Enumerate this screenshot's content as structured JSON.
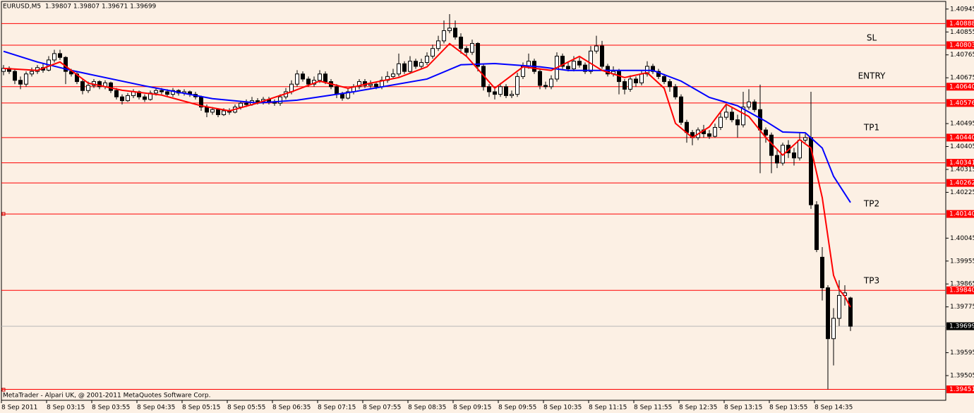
{
  "chart_data": {
    "type": "candlestick",
    "title": "EURUSD,M5  1.39807 1.39807 1.39671 1.39699",
    "caption": "MetaTrader - Alpari UK, @ 2001-2011 MetaQuotes Software Corp.",
    "categories": [
      "8 Sep 2011",
      null,
      null,
      null,
      null,
      null,
      null,
      null,
      "8 Sep 03:15",
      null,
      null,
      null,
      null,
      null,
      null,
      null,
      "8 Sep 03:55",
      null,
      null,
      null,
      null,
      null,
      null,
      null,
      "8 Sep 04:35",
      null,
      null,
      null,
      null,
      null,
      null,
      null,
      "8 Sep 05:15",
      null,
      null,
      null,
      null,
      null,
      null,
      null,
      "8 Sep 05:55",
      null,
      null,
      null,
      null,
      null,
      null,
      null,
      "8 Sep 06:35",
      null,
      null,
      null,
      null,
      null,
      null,
      null,
      "8 Sep 07:15",
      null,
      null,
      null,
      null,
      null,
      null,
      null,
      "8 Sep 07:55",
      null,
      null,
      null,
      null,
      null,
      null,
      null,
      "8 Sep 08:35",
      null,
      null,
      null,
      null,
      null,
      null,
      null,
      "8 Sep 09:15",
      null,
      null,
      null,
      null,
      null,
      null,
      null,
      "8 Sep 09:55",
      null,
      null,
      null,
      null,
      null,
      null,
      null,
      "8 Sep 10:35",
      null,
      null,
      null,
      null,
      null,
      null,
      null,
      "8 Sep 11:15",
      null,
      null,
      null,
      null,
      null,
      null,
      null,
      "8 Sep 11:55",
      null,
      null,
      null,
      null,
      null,
      null,
      null,
      "8 Sep 12:35",
      null,
      null,
      null,
      null,
      null,
      null,
      null,
      "8 Sep 13:15",
      null,
      null,
      null,
      null,
      null,
      null,
      null,
      "8 Sep 13:55",
      null,
      null,
      null,
      null,
      null,
      null,
      null,
      "8 Sep 14:35",
      null,
      null,
      null,
      null,
      null,
      null
    ],
    "open": [
      1.407,
      1.40712,
      1.407,
      1.40665,
      1.4065,
      1.4069,
      1.407,
      1.40715,
      1.40705,
      1.40745,
      1.4077,
      1.40755,
      1.407,
      1.4069,
      1.4066,
      1.40625,
      1.40645,
      1.4066,
      1.4064,
      1.40655,
      1.40625,
      1.406,
      1.40585,
      1.40605,
      1.4062,
      1.406,
      1.4059,
      1.40615,
      1.40625,
      1.4062,
      1.4061,
      1.40625,
      1.40615,
      1.4062,
      1.4061,
      1.406,
      1.4056,
      1.4054,
      1.4055,
      1.4053,
      1.40545,
      1.4054,
      1.4056,
      1.40575,
      1.4057,
      1.40585,
      1.4058,
      1.4059,
      1.4058,
      1.40575,
      1.406,
      1.4062,
      1.4065,
      1.4069,
      1.4067,
      1.4065,
      1.40665,
      1.4069,
      1.4066,
      1.4064,
      1.4061,
      1.40595,
      1.4062,
      1.4064,
      1.4066,
      1.40645,
      1.4065,
      1.4064,
      1.40665,
      1.4068,
      1.4069,
      1.4073,
      1.407,
      1.4074,
      1.4072,
      1.40735,
      1.4076,
      1.4079,
      1.4082,
      1.4086,
      1.4087,
      1.40835,
      1.4079,
      1.40775,
      1.4081,
      1.4072,
      1.4064,
      1.4062,
      1.4061,
      1.4064,
      1.40605,
      1.4061,
      1.4068,
      1.4072,
      1.4074,
      1.407,
      1.40645,
      1.4064,
      1.4067,
      1.4076,
      1.4072,
      1.4071,
      1.4074,
      1.40725,
      1.407,
      1.4078,
      1.408,
      1.4072,
      1.4069,
      1.407,
      1.4066,
      1.4063,
      1.4067,
      1.40655,
      1.4069,
      1.4072,
      1.407,
      1.4068,
      1.4066,
      1.4064,
      1.406,
      1.405,
      1.4046,
      1.4044,
      1.4047,
      1.40455,
      1.40445,
      1.4048,
      1.4052,
      1.4054,
      1.4051,
      1.4049,
      1.4056,
      1.4058,
      1.4055,
      1.4047,
      1.4045,
      1.4037,
      1.4034,
      1.4041,
      1.4038,
      1.4036,
      1.4043,
      1.4044,
      1.40176,
      1.3997,
      1.3985,
      1.3965,
      1.3973,
      1.3982,
      1.3981
    ],
    "high": [
      1.40725,
      1.4072,
      1.4071,
      1.4068,
      1.407,
      1.40715,
      1.40725,
      1.4073,
      1.4076,
      1.40785,
      1.40785,
      1.4076,
      1.4071,
      1.407,
      1.4067,
      1.4066,
      1.4067,
      1.40665,
      1.40665,
      1.4066,
      1.40635,
      1.4061,
      1.40615,
      1.4063,
      1.40625,
      1.4061,
      1.40625,
      1.40635,
      1.40635,
      1.4063,
      1.40635,
      1.4063,
      1.4063,
      1.40625,
      1.4062,
      1.40605,
      1.4057,
      1.4056,
      1.40555,
      1.40555,
      1.40555,
      1.4057,
      1.40585,
      1.4059,
      1.406,
      1.40595,
      1.406,
      1.406,
      1.4059,
      1.4061,
      1.40635,
      1.40665,
      1.40705,
      1.407,
      1.4068,
      1.4068,
      1.40705,
      1.407,
      1.4067,
      1.4065,
      1.4062,
      1.40635,
      1.4065,
      1.4067,
      1.4067,
      1.40665,
      1.4066,
      1.4068,
      1.407,
      1.4071,
      1.4077,
      1.4074,
      1.4076,
      1.4075,
      1.4075,
      1.40775,
      1.40805,
      1.4084,
      1.409,
      1.40925,
      1.409,
      1.4085,
      1.408,
      1.40825,
      1.40815,
      1.4073,
      1.4065,
      1.4064,
      1.40655,
      1.4065,
      1.40625,
      1.40695,
      1.40735,
      1.4077,
      1.4075,
      1.4071,
      1.4066,
      1.40685,
      1.40775,
      1.4077,
      1.40735,
      1.4076,
      1.40755,
      1.40735,
      1.408,
      1.4084,
      1.4082,
      1.4073,
      1.4072,
      1.4071,
      1.4067,
      1.40685,
      1.4068,
      1.40705,
      1.4074,
      1.4073,
      1.4071,
      1.4069,
      1.4067,
      1.4065,
      1.4061,
      1.4051,
      1.4047,
      1.4048,
      1.4049,
      1.4047,
      1.40495,
      1.4054,
      1.4057,
      1.4056,
      1.4053,
      1.4062,
      1.4063,
      1.4059,
      1.40648,
      1.4048,
      1.4046,
      1.4039,
      1.4042,
      1.4043,
      1.404,
      1.4046,
      1.40455,
      1.4062,
      1.4019,
      1.4001,
      1.3986,
      1.3977,
      1.3988,
      1.3986,
      1.39815
    ],
    "low": [
      1.40685,
      1.4069,
      1.4065,
      1.4063,
      1.4064,
      1.4068,
      1.4069,
      1.40695,
      1.407,
      1.40735,
      1.40745,
      1.4065,
      1.4068,
      1.4065,
      1.4061,
      1.40615,
      1.40635,
      1.4063,
      1.4063,
      1.40615,
      1.4059,
      1.4057,
      1.4058,
      1.40595,
      1.4059,
      1.4058,
      1.40585,
      1.40605,
      1.4061,
      1.406,
      1.406,
      1.40605,
      1.40605,
      1.406,
      1.4059,
      1.40545,
      1.4052,
      1.4053,
      1.4052,
      1.40525,
      1.4053,
      1.40535,
      1.4055,
      1.4056,
      1.40565,
      1.4057,
      1.4057,
      1.4057,
      1.40565,
      1.40565,
      1.4059,
      1.4061,
      1.4064,
      1.4066,
      1.4064,
      1.4064,
      1.40655,
      1.4065,
      1.4063,
      1.40595,
      1.40585,
      1.4059,
      1.4061,
      1.4063,
      1.40635,
      1.40635,
      1.4063,
      1.4063,
      1.40655,
      1.4067,
      1.4068,
      1.4069,
      1.4069,
      1.4071,
      1.4071,
      1.40725,
      1.4075,
      1.4078,
      1.4081,
      1.4085,
      1.40825,
      1.4077,
      1.4076,
      1.40765,
      1.407,
      1.40625,
      1.406,
      1.4059,
      1.406,
      1.40595,
      1.40595,
      1.406,
      1.4067,
      1.4071,
      1.4069,
      1.4063,
      1.4063,
      1.4063,
      1.4066,
      1.4071,
      1.407,
      1.407,
      1.40715,
      1.4069,
      1.4069,
      1.4077,
      1.4071,
      1.4068,
      1.4068,
      1.4061,
      1.4061,
      1.4062,
      1.4064,
      1.40645,
      1.4068,
      1.4069,
      1.4067,
      1.4065,
      1.4062,
      1.4059,
      1.4049,
      1.4042,
      1.4041,
      1.4043,
      1.4044,
      1.40435,
      1.4044,
      1.4047,
      1.4051,
      1.405,
      1.4044,
      1.4048,
      1.4055,
      1.4054,
      1.403,
      1.4042,
      1.403,
      1.4032,
      1.4033,
      1.4036,
      1.4033,
      1.4035,
      1.4042,
      1.4016,
      1.3999,
      1.398,
      1.39451,
      1.39545,
      1.397,
      1.3978,
      1.3968
    ],
    "close": [
      1.40712,
      1.407,
      1.40665,
      1.4065,
      1.4069,
      1.407,
      1.40715,
      1.40705,
      1.40745,
      1.4077,
      1.40755,
      1.407,
      1.4069,
      1.4066,
      1.40625,
      1.40645,
      1.4066,
      1.4064,
      1.40655,
      1.40625,
      1.406,
      1.40585,
      1.40605,
      1.4062,
      1.406,
      1.4059,
      1.40615,
      1.40625,
      1.4062,
      1.4061,
      1.40625,
      1.40615,
      1.4062,
      1.4061,
      1.406,
      1.4056,
      1.4054,
      1.4055,
      1.4053,
      1.40545,
      1.4054,
      1.4056,
      1.40575,
      1.4057,
      1.40585,
      1.4058,
      1.4059,
      1.4058,
      1.40575,
      1.406,
      1.4062,
      1.4065,
      1.4069,
      1.4067,
      1.4065,
      1.40665,
      1.4069,
      1.4066,
      1.4064,
      1.4061,
      1.40595,
      1.4062,
      1.4064,
      1.4066,
      1.40645,
      1.4065,
      1.4064,
      1.40665,
      1.4068,
      1.4069,
      1.4073,
      1.407,
      1.4074,
      1.4072,
      1.40735,
      1.4076,
      1.4079,
      1.4082,
      1.4086,
      1.4087,
      1.40835,
      1.4079,
      1.40775,
      1.4081,
      1.4072,
      1.4064,
      1.4062,
      1.4061,
      1.4064,
      1.40605,
      1.4061,
      1.4068,
      1.4072,
      1.4074,
      1.407,
      1.40645,
      1.4064,
      1.4067,
      1.4076,
      1.4072,
      1.4071,
      1.4074,
      1.40725,
      1.407,
      1.4078,
      1.408,
      1.4072,
      1.4069,
      1.407,
      1.4066,
      1.4063,
      1.4067,
      1.40655,
      1.4069,
      1.4072,
      1.407,
      1.4068,
      1.4066,
      1.4064,
      1.406,
      1.405,
      1.4046,
      1.4044,
      1.4047,
      1.40455,
      1.40445,
      1.4048,
      1.4052,
      1.4054,
      1.4051,
      1.4049,
      1.4056,
      1.4058,
      1.4055,
      1.4047,
      1.4045,
      1.4037,
      1.4034,
      1.4041,
      1.4038,
      1.4036,
      1.4043,
      1.4044,
      1.40176,
      1.4,
      1.3985,
      1.3965,
      1.3973,
      1.3982,
      1.3983,
      1.39699
    ],
    "bull_color": "#ffffff",
    "bear_color": "#000000",
    "overlays": [
      {
        "color": "#0000ff",
        "x": [
          0,
          6,
          12,
          25,
          37,
          45,
          52,
          62,
          75,
          81,
          87,
          95,
          100,
          107,
          115,
          120,
          125,
          130,
          135,
          138,
          142,
          145,
          147,
          150
        ],
        "values": [
          1.40779,
          1.40737,
          1.40704,
          1.40643,
          1.40593,
          1.40576,
          1.40587,
          1.4062,
          1.4067,
          1.40726,
          1.40731,
          1.40718,
          1.40704,
          1.40704,
          1.40704,
          1.40662,
          1.40598,
          1.40565,
          1.40504,
          1.40462,
          1.40459,
          1.40399,
          1.40288,
          1.40185
        ]
      },
      {
        "color": "#ff0000",
        "x": [
          0,
          6,
          10,
          15,
          21,
          28,
          35,
          40,
          45,
          51,
          56,
          61,
          65,
          70,
          75,
          79,
          82,
          87,
          92,
          97,
          102,
          106,
          110,
          114,
          117,
          119,
          122,
          125,
          128,
          132,
          135,
          138,
          141,
          143,
          145,
          147,
          148,
          149,
          150
        ],
        "values": [
          1.40712,
          1.40704,
          1.40737,
          1.40654,
          1.40626,
          1.40607,
          1.40565,
          1.40545,
          1.40576,
          1.4062,
          1.40662,
          1.40634,
          1.40654,
          1.40676,
          1.40718,
          1.40809,
          1.40759,
          1.40634,
          1.40718,
          1.40704,
          1.40759,
          1.40704,
          1.40676,
          1.40695,
          1.40634,
          1.40496,
          1.4044,
          1.40482,
          1.40571,
          1.40523,
          1.4044,
          1.40371,
          1.40432,
          1.40399,
          1.40204,
          1.39899,
          1.39843,
          1.39816,
          1.39774
        ]
      }
    ],
    "ylim": [
      1.39408,
      1.40975
    ],
    "yticks": [
      1.40945,
      1.40855,
      1.40765,
      1.40675,
      1.40495,
      1.40405,
      1.40315,
      1.40225,
      1.40045,
      1.39955,
      1.39865,
      1.39775,
      1.39595,
      1.39505
    ],
    "levels": [
      1.40888,
      1.40803,
      {
        "value": 1.4064,
        "label": "1.40640"
      },
      1.40576,
      {
        "value": 1.4044,
        "label": "1.40440"
      },
      1.40341,
      1.40262,
      {
        "value": 1.4014,
        "label": "1.40140"
      },
      {
        "value": 1.3984,
        "label": "1.39840"
      },
      1.39451
    ],
    "level_color": "#ff0000",
    "last_price": 1.39699,
    "annotations": [
      "SL",
      "ENTRY",
      "TP1",
      "TP2",
      "TP3"
    ]
  }
}
